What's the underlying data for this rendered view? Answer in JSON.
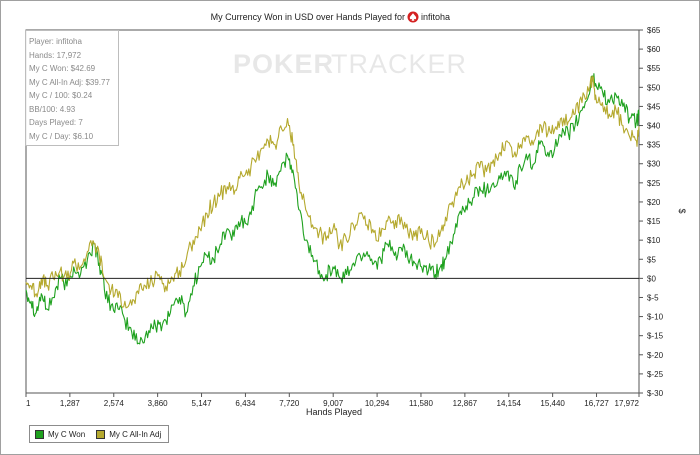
{
  "chart_data": {
    "type": "line",
    "title_text": "My Currency Won in USD over Hands Played for",
    "title_player": "infitoha",
    "watermark_left": "POKER",
    "watermark_right": "TRACKER",
    "xlabel": "Hands Played",
    "ylabel": "$",
    "xlim": [
      1,
      17972
    ],
    "ylim": [
      -30,
      65
    ],
    "x_ticks": [
      "1",
      "1,287",
      "2,574",
      "3,860",
      "5,147",
      "6,434",
      "7,720",
      "9,007",
      "10,294",
      "11,580",
      "12,867",
      "14,154",
      "15,440",
      "16,727",
      "17,972"
    ],
    "x_tick_values": [
      1,
      1287,
      2574,
      3860,
      5147,
      6434,
      7720,
      9007,
      10294,
      11580,
      12867,
      14154,
      15440,
      16727,
      17972
    ],
    "y_ticks": [
      "$65",
      "$60",
      "$55",
      "$50",
      "$45",
      "$40",
      "$35",
      "$30",
      "$25",
      "$20",
      "$15",
      "$10",
      "$5",
      "$0",
      "$-5",
      "$-10",
      "$-15",
      "$-20",
      "$-25",
      "$-30"
    ],
    "y_tick_values": [
      65,
      60,
      55,
      50,
      45,
      40,
      35,
      30,
      25,
      20,
      15,
      10,
      5,
      0,
      -5,
      -10,
      -15,
      -20,
      -25,
      -30
    ],
    "grid": false,
    "zero_line": true,
    "legend_position": "bottom-left",
    "series": [
      {
        "name": "My C Won",
        "color": "#1fa11f",
        "x": [
          1,
          150,
          300,
          450,
          600,
          800,
          1000,
          1200,
          1400,
          1600,
          1800,
          2000,
          2150,
          2300,
          2500,
          2700,
          2900,
          3100,
          3300,
          3500,
          3700,
          3900,
          4100,
          4300,
          4500,
          4700,
          4900,
          5100,
          5300,
          5500,
          5700,
          5900,
          6100,
          6300,
          6500,
          6700,
          6900,
          7100,
          7300,
          7500,
          7700,
          7850,
          8000,
          8200,
          8400,
          8600,
          8800,
          9000,
          9200,
          9400,
          9600,
          9800,
          10000,
          10200,
          10400,
          10600,
          10800,
          11000,
          11200,
          11400,
          11600,
          11800,
          12000,
          12150,
          12300,
          12500,
          12700,
          12900,
          13100,
          13300,
          13500,
          13700,
          13900,
          14100,
          14300,
          14500,
          14700,
          14900,
          15100,
          15300,
          15500,
          15700,
          15900,
          16100,
          16300,
          16500,
          16600,
          16700,
          16900,
          17100,
          17300,
          17500,
          17700,
          17900,
          17972
        ],
        "y": [
          -3,
          -6,
          -9,
          -4,
          -8,
          -5,
          0,
          -2,
          3,
          1,
          5,
          9,
          4,
          -3,
          -7,
          -8,
          -11,
          -14,
          -17,
          -15,
          -13,
          -12,
          -11,
          -7,
          -5,
          -9,
          -2,
          3,
          6,
          5,
          9,
          13,
          11,
          15,
          14,
          21,
          24,
          27,
          25,
          30,
          31,
          27,
          18,
          10,
          6,
          2,
          1,
          3,
          0,
          1,
          4,
          6,
          7,
          4,
          5,
          9,
          6,
          8,
          5,
          4,
          3,
          2,
          1,
          3,
          5,
          9,
          17,
          19,
          21,
          24,
          23,
          25,
          26,
          28,
          24,
          29,
          31,
          30,
          36,
          33,
          34,
          37,
          38,
          40,
          44,
          48,
          53,
          51,
          49,
          46,
          48,
          45,
          42,
          41,
          42.69
        ]
      },
      {
        "name": "My C All-In Adj",
        "color": "#b5a92f",
        "x": [
          1,
          150,
          300,
          450,
          600,
          800,
          1000,
          1200,
          1400,
          1600,
          1800,
          2000,
          2150,
          2300,
          2500,
          2700,
          2900,
          3100,
          3300,
          3500,
          3700,
          3900,
          4100,
          4300,
          4500,
          4700,
          4900,
          5100,
          5300,
          5500,
          5700,
          5900,
          6100,
          6300,
          6500,
          6700,
          6900,
          7100,
          7300,
          7500,
          7700,
          7850,
          8000,
          8200,
          8400,
          8600,
          8800,
          9000,
          9200,
          9400,
          9600,
          9800,
          10000,
          10200,
          10400,
          10600,
          10800,
          11000,
          11200,
          11400,
          11600,
          11800,
          12000,
          12150,
          12300,
          12500,
          12700,
          12900,
          13100,
          13300,
          13500,
          13700,
          13900,
          14100,
          14300,
          14500,
          14700,
          14900,
          15100,
          15300,
          15500,
          15700,
          15900,
          16100,
          16300,
          16500,
          16600,
          16700,
          16900,
          17100,
          17300,
          17500,
          17700,
          17900,
          17972
        ],
        "y": [
          -1,
          -2,
          -4,
          0,
          -2,
          0,
          2,
          0,
          4,
          3,
          7,
          9,
          6,
          0,
          -3,
          -5,
          -6,
          -7,
          -4,
          -2,
          -1,
          1,
          -2,
          0,
          2,
          5,
          10,
          13,
          17,
          20,
          22,
          24,
          22,
          28,
          27,
          31,
          34,
          36,
          35,
          39,
          40,
          35,
          25,
          18,
          14,
          12,
          10,
          13,
          9,
          10,
          14,
          17,
          14,
          12,
          11,
          15,
          13,
          16,
          12,
          11,
          13,
          10,
          9,
          12,
          16,
          20,
          24,
          25,
          27,
          29,
          28,
          31,
          33,
          36,
          32,
          35,
          37,
          36,
          40,
          38,
          39,
          42,
          41,
          43,
          46,
          49,
          52,
          48,
          46,
          43,
          44,
          40,
          37,
          36,
          39.77
        ]
      }
    ]
  },
  "stats_box": [
    "Player: infitoha",
    "Hands: 17,972",
    "My C Won: $42.69",
    "My C All-In Adj: $39.77",
    "My C / 100: $0.24",
    "BB/100: 4.93",
    "Days Played: 7",
    "My C / Day: $6.10"
  ],
  "colors": {
    "won": "#1fa11f",
    "allin": "#b5a92f",
    "axis": "#222222",
    "title_icon": "#d42020"
  }
}
